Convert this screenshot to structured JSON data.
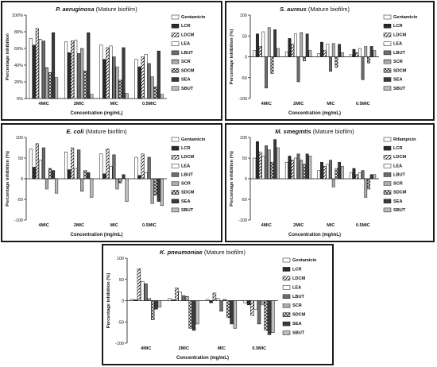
{
  "chart_data": [
    {
      "type": "bar",
      "title_species": "P. aeruginosa",
      "title_rest": " (Mature biofilm)",
      "xlabel": "Concentration (mg/mL)",
      "ylabel": "Percentage inhibition",
      "ylim": [
        0,
        100
      ],
      "yticks": [
        "0%",
        "20%",
        "40%",
        "60%",
        "80%",
        "100%"
      ],
      "ytick_values": [
        0,
        20,
        40,
        60,
        80,
        100
      ],
      "categories": [
        "4MIC",
        "2MIC",
        "MIC",
        "0.5MIC"
      ],
      "legend": [
        "Gentamicin",
        "LCR",
        "LDCM",
        "LEA",
        "LBUT",
        "SCR",
        "SDCM",
        "SEA",
        "SBUT"
      ],
      "series": [
        {
          "name": "Gentamicin",
          "values": [
            72,
            68,
            64,
            47
          ]
        },
        {
          "name": "LCR",
          "values": [
            64,
            55,
            47,
            38
          ]
        },
        {
          "name": "LDCM",
          "values": [
            84,
            69,
            61,
            50
          ]
        },
        {
          "name": "LEA",
          "values": [
            71,
            70,
            63,
            53
          ]
        },
        {
          "name": "LBUT",
          "values": [
            69,
            54,
            50,
            42
          ]
        },
        {
          "name": "SCR",
          "values": [
            37,
            60,
            38,
            26
          ]
        },
        {
          "name": "SDCM",
          "values": [
            31,
            33,
            22,
            14
          ]
        },
        {
          "name": "SEA",
          "values": [
            79,
            79,
            61,
            57
          ]
        },
        {
          "name": "SBUT",
          "values": [
            25,
            5,
            6,
            5
          ]
        }
      ]
    },
    {
      "type": "bar",
      "title_species": "S. aureus",
      "title_rest": " (Mature biofilm)",
      "xlabel": "Concentration (mg/mL)",
      "ylabel": "Percentage inhibition (%)",
      "ylim": [
        -100,
        100
      ],
      "yticks": [
        "-100",
        "-50",
        "0",
        "50",
        "100"
      ],
      "ytick_values": [
        -100,
        -50,
        0,
        50,
        100
      ],
      "categories": [
        "4MIC",
        "2MIC",
        "MIC",
        "0.5MIC"
      ],
      "legend": [
        "Gentamicin",
        "LCR",
        "LDCM",
        "LEA",
        "LBUT",
        "SCR",
        "SDCM",
        "SEA",
        "SBUT"
      ],
      "series": [
        {
          "name": "Gentamicin",
          "values": [
            15,
            12,
            8,
            5
          ]
        },
        {
          "name": "LCR",
          "values": [
            55,
            44,
            35,
            18
          ]
        },
        {
          "name": "LDCM",
          "values": [
            25,
            30,
            15,
            10
          ]
        },
        {
          "name": "LEA",
          "values": [
            60,
            55,
            30,
            20
          ]
        },
        {
          "name": "LBUT",
          "values": [
            -75,
            -60,
            -35,
            -55
          ]
        },
        {
          "name": "SCR",
          "values": [
            70,
            58,
            32,
            25
          ]
        },
        {
          "name": "SDCM",
          "values": [
            -40,
            -10,
            -25,
            -15
          ]
        },
        {
          "name": "SEA",
          "values": [
            65,
            55,
            30,
            25
          ]
        },
        {
          "name": "SBUT",
          "values": [
            20,
            15,
            10,
            15
          ]
        }
      ]
    },
    {
      "type": "bar",
      "title_species": "E. coli",
      "title_rest": " (Mature biofilm)",
      "xlabel": "Concentration (mg/mL)",
      "ylabel": "Percentage inhibition (%)",
      "ylim": [
        -100,
        100
      ],
      "yticks": [
        "-100",
        "-50",
        "0",
        "50",
        "100"
      ],
      "ytick_values": [
        -100,
        -50,
        0,
        50,
        100
      ],
      "categories": [
        "4MIC",
        "2MIC",
        "MIC",
        "0.5MIC"
      ],
      "legend": [
        "Gentamicin",
        "LCR",
        "LDCM",
        "LEA",
        "LBUT",
        "SCR",
        "SDCM",
        "SEA",
        "SBUT"
      ],
      "series": [
        {
          "name": "Gentamicin",
          "values": [
            72,
            65,
            60,
            52
          ]
        },
        {
          "name": "LCR",
          "values": [
            28,
            22,
            12,
            8
          ]
        },
        {
          "name": "LDCM",
          "values": [
            85,
            75,
            72,
            60
          ]
        },
        {
          "name": "LEA",
          "values": [
            45,
            25,
            30,
            15
          ]
        },
        {
          "name": "LBUT",
          "values": [
            75,
            70,
            58,
            52
          ]
        },
        {
          "name": "SCR",
          "values": [
            -25,
            -30,
            -25,
            -60
          ]
        },
        {
          "name": "SDCM",
          "values": [
            25,
            20,
            -10,
            -40
          ]
        },
        {
          "name": "SEA",
          "values": [
            20,
            15,
            10,
            -55
          ]
        },
        {
          "name": "SBUT",
          "values": [
            -35,
            -45,
            -55,
            -65
          ]
        }
      ]
    },
    {
      "type": "bar",
      "title_species": "M. smegmtis",
      "title_rest": " (Mature biofilm)",
      "xlabel": "Concentration (mg/mL)",
      "ylabel": "Percentage inhibition (%)",
      "ylim": [
        -100,
        100
      ],
      "yticks": [
        "-100",
        "-50",
        "0",
        "50",
        "100"
      ],
      "ytick_values": [
        -100,
        -50,
        0,
        50,
        100
      ],
      "categories": [
        "4MIC",
        "2MIC",
        "MIC",
        "0.5MIC"
      ],
      "legend": [
        "Rifampicin",
        "LCR",
        "LDCM",
        "LEA",
        "LBUT",
        "SCR",
        "SDCM",
        "SEA",
        "SBUT"
      ],
      "series": [
        {
          "name": "Rifampicin",
          "values": [
            50,
            40,
            20,
            15
          ]
        },
        {
          "name": "LCR",
          "values": [
            90,
            55,
            40,
            25
          ]
        },
        {
          "name": "LDCM",
          "values": [
            65,
            45,
            30,
            10
          ]
        },
        {
          "name": "LEA",
          "values": [
            55,
            50,
            35,
            15
          ]
        },
        {
          "name": "LBUT",
          "values": [
            80,
            60,
            45,
            20
          ]
        },
        {
          "name": "SCR",
          "values": [
            70,
            45,
            -20,
            -45
          ]
        },
        {
          "name": "SDCM",
          "values": [
            40,
            35,
            25,
            -25
          ]
        },
        {
          "name": "SEA",
          "values": [
            95,
            60,
            40,
            10
          ]
        },
        {
          "name": "SBUT",
          "values": [
            75,
            55,
            30,
            10
          ]
        }
      ]
    },
    {
      "type": "bar",
      "title_species": "K. pneumoniae",
      "title_rest": " (Mature biofilm)",
      "xlabel": "Concentration (mg/mL)",
      "ylabel": "Percentage inhibition (%)",
      "ylim": [
        -100,
        100
      ],
      "yticks": [
        "-100",
        "-50",
        "0",
        "50",
        "100"
      ],
      "ytick_values": [
        -100,
        -50,
        0,
        50,
        100
      ],
      "categories": [
        "4MIC",
        "2MIC",
        "MIC",
        "0.5MIC"
      ],
      "legend": [
        "Gentamicin",
        "LCR",
        "LDCM",
        "LEA",
        "LBUT",
        "SCR",
        "SDCM",
        "SEA",
        "SBUT"
      ],
      "series": [
        {
          "name": "Gentamicin",
          "values": [
            3,
            5,
            3,
            -5
          ]
        },
        {
          "name": "LCR",
          "values": [
            2,
            2,
            -5,
            -10
          ]
        },
        {
          "name": "LDCM",
          "values": [
            75,
            30,
            18,
            -35
          ]
        },
        {
          "name": "LEA",
          "values": [
            45,
            20,
            5,
            -20
          ]
        },
        {
          "name": "LBUT",
          "values": [
            40,
            12,
            -25,
            -55
          ]
        },
        {
          "name": "SCR",
          "values": [
            5,
            10,
            3,
            -10
          ]
        },
        {
          "name": "SDCM",
          "values": [
            -45,
            -65,
            -40,
            -70
          ]
        },
        {
          "name": "SEA",
          "values": [
            -20,
            -70,
            -55,
            -80
          ]
        },
        {
          "name": "SBUT",
          "values": [
            -15,
            -55,
            -65,
            -75
          ]
        }
      ]
    }
  ]
}
